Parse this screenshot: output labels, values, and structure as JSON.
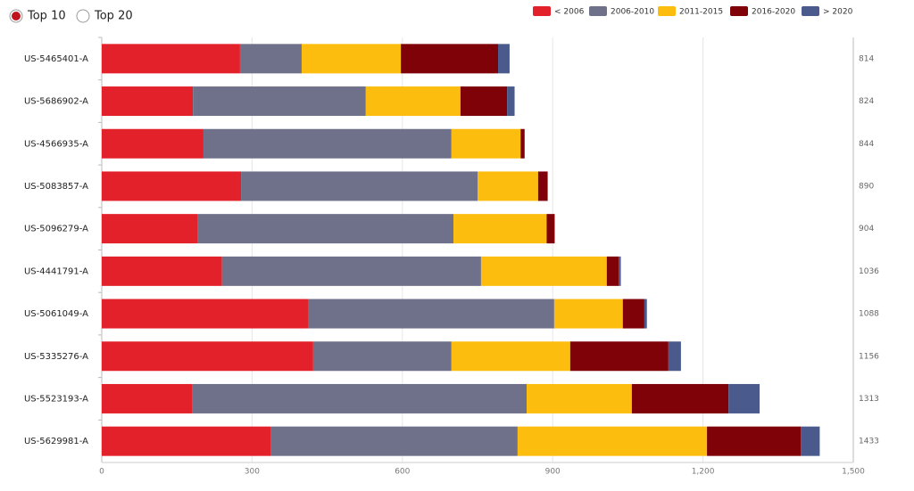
{
  "filters": {
    "options": [
      "Top 10",
      "Top 20"
    ],
    "selected": 0
  },
  "chart_data": {
    "type": "stacked-bar-horizontal",
    "categories": [
      "US-5465401-A",
      "US-5686902-A",
      "US-4566935-A",
      "US-5083857-A",
      "US-5096279-A",
      "US-4441791-A",
      "US-5061049-A",
      "US-5335276-A",
      "US-5523193-A",
      "US-5629981-A"
    ],
    "totals": [
      814,
      824,
      844,
      890,
      904,
      1036,
      1088,
      1156,
      1313,
      1433
    ],
    "series": [
      {
        "name": "< 2006",
        "color": "#e3212a",
        "values": [
          276,
          182,
          203,
          278,
          192,
          240,
          413,
          422,
          180,
          338
        ]
      },
      {
        "name": "2006-2010",
        "color": "#6f7089",
        "values": [
          123,
          345,
          495,
          472,
          510,
          517,
          490,
          276,
          668,
          492
        ]
      },
      {
        "name": "2011-2015",
        "color": "#fcbd0f",
        "values": [
          198,
          189,
          138,
          121,
          186,
          251,
          137,
          237,
          210,
          378
        ]
      },
      {
        "name": "2016-2020",
        "color": "#7e0208",
        "values": [
          194,
          93,
          8,
          19,
          16,
          24,
          43,
          196,
          193,
          187
        ]
      },
      {
        "name": "> 2020",
        "color": "#4a5a8d",
        "values": [
          23,
          15,
          0,
          0,
          0,
          4,
          5,
          25,
          62,
          38
        ]
      }
    ],
    "xlim": [
      0,
      1500
    ],
    "xticks": [
      0,
      300,
      600,
      900,
      {
        "value": 1200,
        "label": "1,200"
      },
      {
        "value": 1500,
        "label": "1,500"
      }
    ],
    "grid": true
  }
}
